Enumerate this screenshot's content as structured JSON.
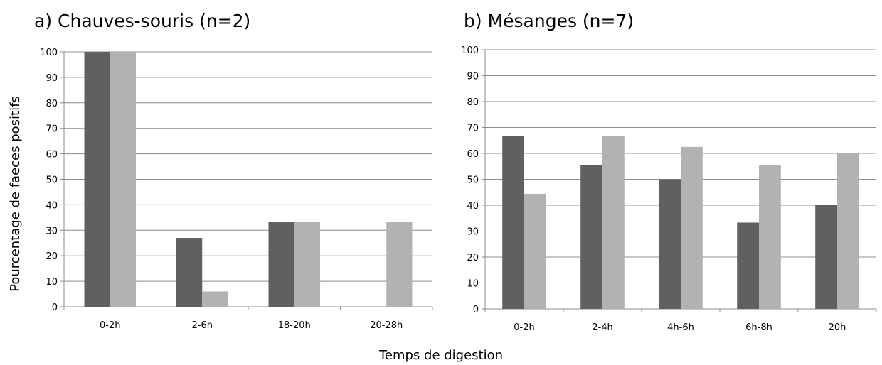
{
  "figure": {
    "xlabel": "Temps  de digestion",
    "ylabel": "Pourcentage de faeces positifs"
  },
  "colors": {
    "series1": "#606060",
    "series2": "#b2b2b2",
    "grid": "#8c8c8c",
    "axis": "#8c8c8c"
  },
  "chart_data": [
    {
      "type": "bar",
      "title": "a)  Chauves-souris (n=2)",
      "categories": [
        "0-2h",
        "2-6h",
        "18-20h",
        "20-28h"
      ],
      "series": [
        {
          "values": [
            100,
            27,
            33.3,
            0
          ]
        },
        {
          "values": [
            100,
            6,
            33.3,
            33.3
          ]
        }
      ],
      "ylim": [
        0,
        100
      ],
      "yticks": [
        0,
        10,
        20,
        30,
        40,
        50,
        60,
        70,
        80,
        90,
        100
      ],
      "grid": true
    },
    {
      "type": "bar",
      "title": "b) Mésanges (n=7)",
      "categories": [
        "0-2h",
        "2-4h",
        "4h-6h",
        "6h-8h",
        "20h"
      ],
      "series": [
        {
          "values": [
            66.7,
            55.6,
            50,
            33.3,
            40
          ]
        },
        {
          "values": [
            44.4,
            66.7,
            62.5,
            55.6,
            60
          ]
        }
      ],
      "ylim": [
        0,
        100
      ],
      "yticks": [
        0,
        10,
        20,
        30,
        40,
        50,
        60,
        70,
        80,
        90,
        100
      ],
      "grid": true
    }
  ]
}
